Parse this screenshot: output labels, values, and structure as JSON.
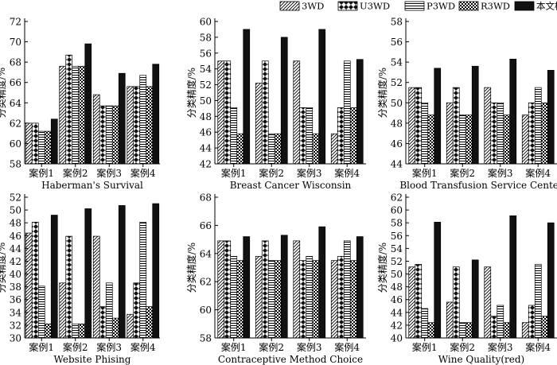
{
  "legend": {
    "items": [
      {
        "label": "3WD",
        "pattern": "diag"
      },
      {
        "label": "U3WD",
        "pattern": "diamond"
      },
      {
        "label": "P3WD",
        "pattern": "hlines"
      },
      {
        "label": "R3WD",
        "pattern": "checker"
      },
      {
        "label": "本文模型",
        "pattern": "solid"
      }
    ]
  },
  "colors": {
    "ink": "#000000",
    "background": "#ffffff",
    "solid": "#111111"
  },
  "chart_data": [
    {
      "type": "bar",
      "title": "Haberman's Survival",
      "ylabel": "分类精度/%",
      "ylim": [
        58,
        72
      ],
      "yticks": [
        58,
        60,
        62,
        64,
        66,
        68,
        70,
        72
      ],
      "categories": [
        "案例1",
        "案例2",
        "案例3",
        "案例4"
      ],
      "series": [
        {
          "name": "3WD",
          "values": [
            62.0,
            67.6,
            64.8,
            65.6
          ]
        },
        {
          "name": "U3WD",
          "values": [
            62.0,
            68.7,
            63.7,
            65.6
          ]
        },
        {
          "name": "P3WD",
          "values": [
            61.2,
            67.6,
            63.7,
            66.7
          ]
        },
        {
          "name": "R3WD",
          "values": [
            61.2,
            67.6,
            63.7,
            65.6
          ]
        },
        {
          "name": "本文模型",
          "values": [
            62.4,
            69.8,
            66.9,
            67.8
          ]
        }
      ]
    },
    {
      "type": "bar",
      "title": "Breast Cancer Wisconsin",
      "ylabel": "分类精度/%",
      "ylim": [
        42,
        60
      ],
      "yticks": [
        42,
        44,
        46,
        48,
        50,
        52,
        54,
        56,
        58,
        60
      ],
      "categories": [
        "案例1",
        "案例2",
        "案例3",
        "案例4"
      ],
      "series": [
        {
          "name": "3WD",
          "values": [
            55.0,
            52.2,
            55.0,
            45.8
          ]
        },
        {
          "name": "U3WD",
          "values": [
            55.0,
            55.0,
            49.1,
            49.1
          ]
        },
        {
          "name": "P3WD",
          "values": [
            49.1,
            45.8,
            49.1,
            55.0
          ]
        },
        {
          "name": "R3WD",
          "values": [
            45.8,
            45.8,
            45.8,
            49.1
          ]
        },
        {
          "name": "本文模型",
          "values": [
            59.0,
            58.0,
            59.0,
            55.2
          ]
        }
      ]
    },
    {
      "type": "bar",
      "title": "Blood Transfusion Service Center",
      "ylabel": "分类精度/%",
      "ylim": [
        44,
        58
      ],
      "yticks": [
        44,
        46,
        48,
        50,
        52,
        54,
        56,
        58
      ],
      "categories": [
        "案例1",
        "案例2",
        "案例3",
        "案例4"
      ],
      "series": [
        {
          "name": "3WD",
          "values": [
            51.5,
            50.0,
            51.5,
            48.8
          ]
        },
        {
          "name": "U3WD",
          "values": [
            51.5,
            51.5,
            50.0,
            50.0
          ]
        },
        {
          "name": "P3WD",
          "values": [
            50.0,
            48.8,
            50.0,
            51.5
          ]
        },
        {
          "name": "R3WD",
          "values": [
            48.8,
            48.8,
            48.8,
            50.0
          ]
        },
        {
          "name": "本文模型",
          "values": [
            53.4,
            53.6,
            54.3,
            53.2
          ]
        }
      ]
    },
    {
      "type": "bar",
      "title": "Website Phising",
      "ylabel": "分类精度/%",
      "ylim": [
        30,
        52
      ],
      "yticks": [
        30,
        32,
        34,
        36,
        38,
        40,
        42,
        44,
        46,
        48,
        50,
        52
      ],
      "categories": [
        "案例1",
        "案例2",
        "案例3",
        "案例4"
      ],
      "series": [
        {
          "name": "3WD",
          "values": [
            46.4,
            38.6,
            45.9,
            33.7
          ]
        },
        {
          "name": "U3WD",
          "values": [
            48.1,
            45.9,
            34.9,
            38.6
          ]
        },
        {
          "name": "P3WD",
          "values": [
            38.1,
            32.2,
            38.6,
            48.1
          ]
        },
        {
          "name": "R3WD",
          "values": [
            32.2,
            32.2,
            33.1,
            34.9
          ]
        },
        {
          "name": "本文模型",
          "values": [
            49.2,
            50.2,
            50.7,
            51.0
          ]
        }
      ]
    },
    {
      "type": "bar",
      "title": "Contraceptive Method Choice",
      "ylabel": "分类精度/%",
      "ylim": [
        58,
        68
      ],
      "yticks": [
        58,
        60,
        62,
        64,
        66,
        68
      ],
      "categories": [
        "案例1",
        "案例2",
        "案例3",
        "案例4"
      ],
      "series": [
        {
          "name": "3WD",
          "values": [
            64.9,
            63.8,
            64.9,
            63.5
          ]
        },
        {
          "name": "U3WD",
          "values": [
            64.9,
            64.9,
            63.5,
            63.8
          ]
        },
        {
          "name": "P3WD",
          "values": [
            63.8,
            63.5,
            63.8,
            64.9
          ]
        },
        {
          "name": "R3WD",
          "values": [
            63.5,
            63.5,
            63.5,
            63.5
          ]
        },
        {
          "name": "本文模型",
          "values": [
            65.2,
            65.3,
            65.9,
            65.2
          ]
        }
      ]
    },
    {
      "type": "bar",
      "title": "Wine Quality(red)",
      "ylabel": "分类精度/%",
      "ylim": [
        40,
        62
      ],
      "yticks": [
        40,
        42,
        44,
        46,
        48,
        50,
        52,
        54,
        56,
        58,
        60,
        62
      ],
      "categories": [
        "案例1",
        "案例2",
        "案例3",
        "案例4"
      ],
      "series": [
        {
          "name": "3WD",
          "values": [
            51.1,
            45.6,
            51.1,
            42.4
          ]
        },
        {
          "name": "U3WD",
          "values": [
            51.5,
            51.1,
            43.4,
            45.1
          ]
        },
        {
          "name": "P3WD",
          "values": [
            44.6,
            42.4,
            45.1,
            51.5
          ]
        },
        {
          "name": "R3WD",
          "values": [
            42.4,
            42.4,
            42.4,
            43.4
          ]
        },
        {
          "name": "本文模型",
          "values": [
            58.1,
            52.2,
            59.1,
            58.0
          ]
        }
      ]
    }
  ]
}
